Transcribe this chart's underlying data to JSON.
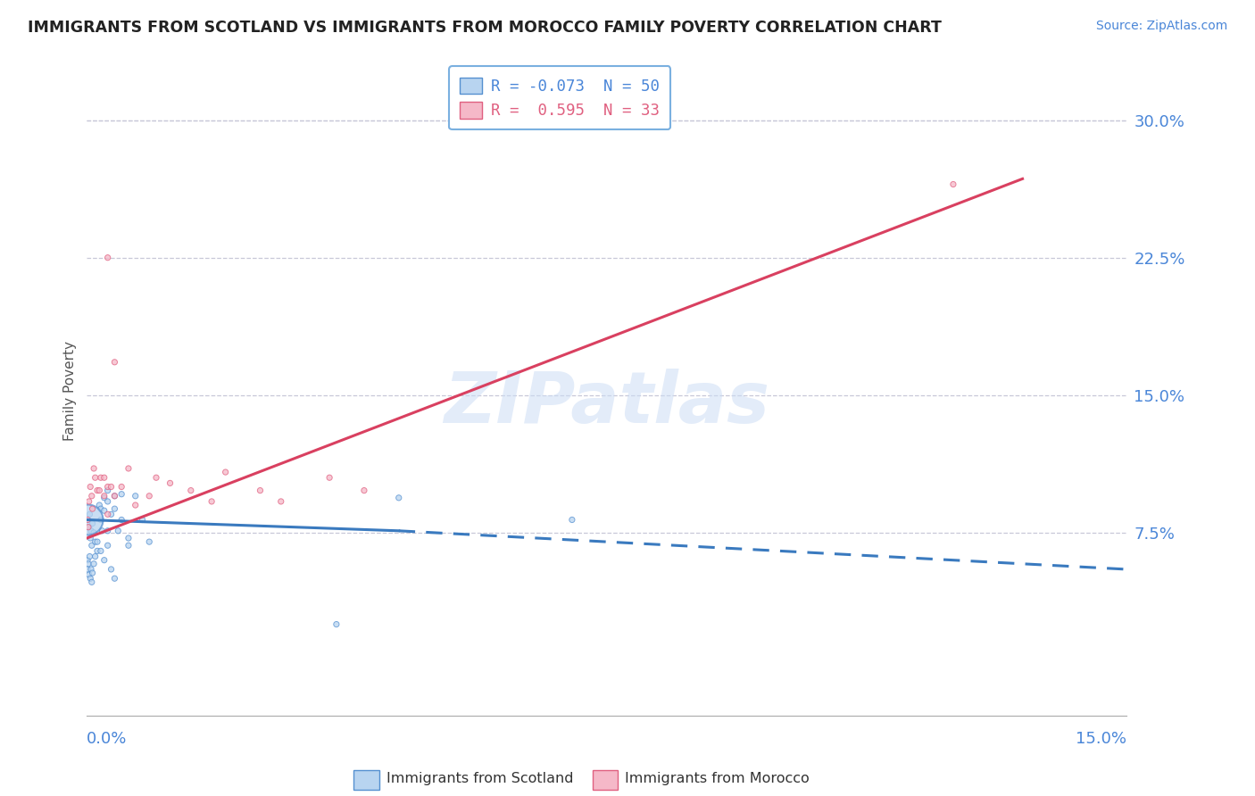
{
  "title": "IMMIGRANTS FROM SCOTLAND VS IMMIGRANTS FROM MOROCCO FAMILY POVERTY CORRELATION CHART",
  "source": "Source: ZipAtlas.com",
  "ylabel": "Family Poverty",
  "right_ytick_vals": [
    0.075,
    0.15,
    0.225,
    0.3
  ],
  "right_ytick_labels": [
    "7.5%",
    "15.0%",
    "22.5%",
    "30.0%"
  ],
  "xlim": [
    0.0,
    0.15
  ],
  "ylim": [
    -0.025,
    0.33
  ],
  "scotland_R": -0.073,
  "scotland_N": 50,
  "morocco_R": 0.595,
  "morocco_N": 33,
  "scotland_color": "#b8d4f0",
  "morocco_color": "#f5b8c8",
  "scotland_edge_color": "#5590d0",
  "morocco_edge_color": "#e06080",
  "scotland_line_color": "#3a7abf",
  "morocco_line_color": "#d94060",
  "watermark": "ZIPatlas",
  "background_color": "#ffffff",
  "grid_color": "#c8c8d8",
  "title_color": "#222222",
  "axis_label_color": "#4a86d8",
  "legend_border_color": "#7ab0e0",
  "scotland_scatter_x": [
    0.0002,
    0.0003,
    0.0004,
    0.0005,
    0.0006,
    0.0007,
    0.0008,
    0.001,
    0.0012,
    0.0015,
    0.0018,
    0.002,
    0.002,
    0.0022,
    0.0025,
    0.0025,
    0.003,
    0.003,
    0.003,
    0.0035,
    0.004,
    0.004,
    0.0045,
    0.005,
    0.005,
    0.006,
    0.006,
    0.007,
    0.008,
    0.009,
    0.0001,
    0.0001,
    0.0002,
    0.0003,
    0.0004,
    0.0005,
    0.0006,
    0.0007,
    0.0008,
    0.001,
    0.0012,
    0.0015,
    0.002,
    0.0025,
    0.003,
    0.0035,
    0.004,
    0.045,
    0.07,
    0.036
  ],
  "scotland_scatter_y": [
    0.082,
    0.078,
    0.085,
    0.072,
    0.076,
    0.068,
    0.08,
    0.075,
    0.07,
    0.065,
    0.09,
    0.082,
    0.088,
    0.076,
    0.094,
    0.087,
    0.098,
    0.092,
    0.076,
    0.085,
    0.095,
    0.088,
    0.076,
    0.082,
    0.096,
    0.072,
    0.068,
    0.095,
    0.082,
    0.07,
    0.06,
    0.055,
    0.058,
    0.052,
    0.062,
    0.05,
    0.055,
    0.048,
    0.053,
    0.058,
    0.062,
    0.07,
    0.065,
    0.06,
    0.068,
    0.055,
    0.05,
    0.094,
    0.082,
    0.025
  ],
  "scotland_scatter_sizes": [
    20,
    20,
    20,
    20,
    20,
    20,
    20,
    20,
    20,
    20,
    20,
    20,
    20,
    20,
    20,
    20,
    20,
    20,
    20,
    20,
    20,
    20,
    20,
    20,
    20,
    20,
    20,
    20,
    20,
    20,
    20,
    20,
    20,
    20,
    20,
    20,
    20,
    20,
    20,
    20,
    20,
    20,
    20,
    20,
    20,
    20,
    20,
    20,
    20,
    20
  ],
  "scotland_large_x": [
    0.0001
  ],
  "scotland_large_y": [
    0.082
  ],
  "scotland_large_size": [
    600
  ],
  "morocco_scatter_x": [
    0.0001,
    0.0002,
    0.0003,
    0.0005,
    0.0007,
    0.001,
    0.0015,
    0.002,
    0.0025,
    0.003,
    0.003,
    0.0035,
    0.004,
    0.005,
    0.006,
    0.007,
    0.009,
    0.01,
    0.012,
    0.015,
    0.018,
    0.02,
    0.025,
    0.028,
    0.035,
    0.04,
    0.0008,
    0.0012,
    0.0018,
    0.0025,
    0.003,
    0.004,
    0.125
  ],
  "morocco_scatter_y": [
    0.082,
    0.078,
    0.092,
    0.1,
    0.095,
    0.11,
    0.098,
    0.105,
    0.095,
    0.085,
    0.1,
    0.1,
    0.095,
    0.1,
    0.11,
    0.09,
    0.095,
    0.105,
    0.102,
    0.098,
    0.092,
    0.108,
    0.098,
    0.092,
    0.105,
    0.098,
    0.088,
    0.105,
    0.098,
    0.105,
    0.225,
    0.168,
    0.265
  ],
  "morocco_scatter_sizes": [
    20,
    20,
    20,
    20,
    20,
    20,
    20,
    20,
    20,
    20,
    20,
    20,
    20,
    20,
    20,
    20,
    20,
    20,
    20,
    20,
    20,
    20,
    20,
    20,
    20,
    20,
    20,
    20,
    20,
    20,
    20,
    20,
    20
  ],
  "scotland_line_x0": 0.0,
  "scotland_line_x_solid_end": 0.045,
  "scotland_line_x1": 0.15,
  "scotland_line_y0": 0.082,
  "scotland_line_y_solid_end": 0.076,
  "scotland_line_y1": 0.055,
  "morocco_line_x0": 0.0,
  "morocco_line_x1": 0.135,
  "morocco_line_y0": 0.072,
  "morocco_line_y1": 0.268
}
